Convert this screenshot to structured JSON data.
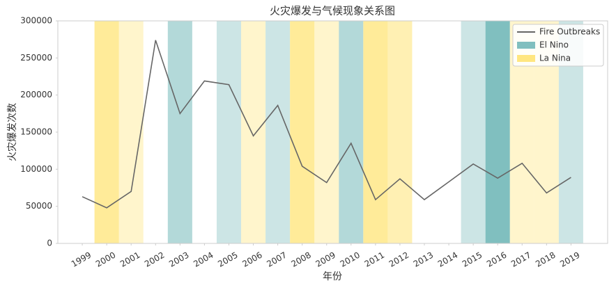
{
  "chart_data": {
    "type": "line",
    "title": "火灾爆发与气候现象关系图",
    "x_label": "年份",
    "y_label": "火灾爆发次数",
    "x": [
      1999,
      2000,
      2001,
      2002,
      2003,
      2004,
      2005,
      2006,
      2007,
      2008,
      2009,
      2010,
      2011,
      2012,
      2013,
      2014,
      2015,
      2016,
      2017,
      2018,
      2019
    ],
    "series": [
      {
        "name": "Fire Outbreaks",
        "color": "#666666",
        "values": [
          63000,
          48000,
          70000,
          274000,
          175000,
          219000,
          214000,
          145000,
          186000,
          104000,
          82000,
          135000,
          59000,
          87000,
          59000,
          83000,
          107000,
          88000,
          108000,
          68000,
          89000
        ]
      }
    ],
    "shading": [
      {
        "name": "El Nino",
        "color": "#80bfbf",
        "years": [
          2003,
          2005,
          2007,
          2010,
          2015,
          2016,
          2019
        ],
        "alpha": [
          0.6,
          0.4,
          0.4,
          0.6,
          0.4,
          1.0,
          0.4
        ]
      },
      {
        "name": "La Nina",
        "color": "#ffe680",
        "years": [
          2000,
          2001,
          2006,
          2008,
          2009,
          2011,
          2012,
          2017,
          2018
        ],
        "alpha": [
          0.8,
          0.4,
          0.4,
          0.8,
          0.4,
          0.8,
          0.6,
          0.4,
          0.4
        ]
      }
    ],
    "xlim": [
      1998,
      2020.5
    ],
    "xticks": [
      1999,
      2000,
      2001,
      2002,
      2003,
      2004,
      2005,
      2006,
      2007,
      2008,
      2009,
      2010,
      2011,
      2012,
      2013,
      2014,
      2015,
      2016,
      2017,
      2018,
      2019
    ],
    "ylim": [
      0,
      300000
    ],
    "yticks": [
      0,
      50000,
      100000,
      150000,
      200000,
      250000,
      300000
    ],
    "grid": false,
    "legend": "upper right"
  }
}
